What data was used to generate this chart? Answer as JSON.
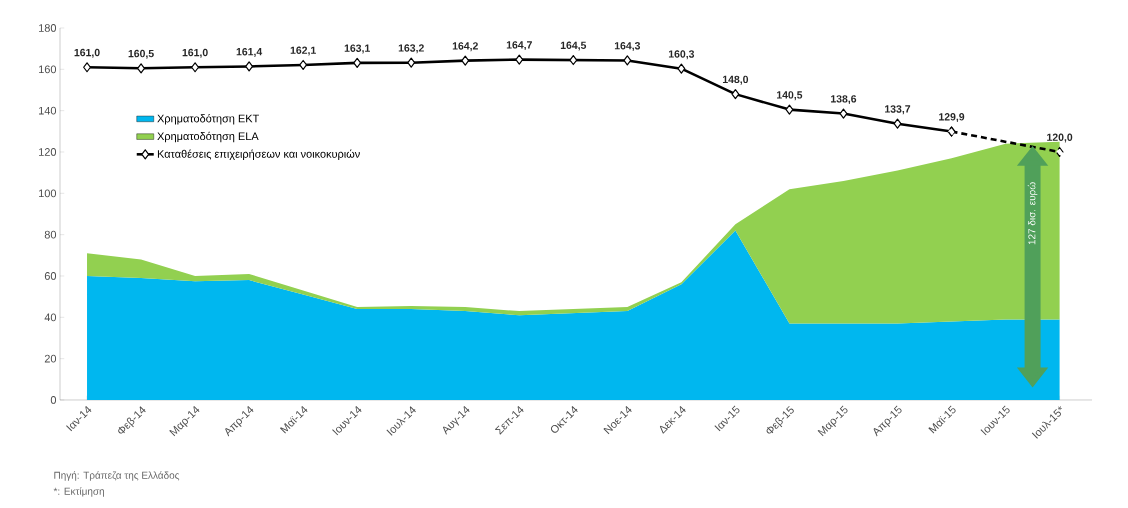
{
  "chart_data": {
    "type": "area",
    "stacked": true,
    "categories": [
      "Ιαν-14",
      "Φεβ-14",
      "Μαρ-14",
      "Απρ-14",
      "Μαϊ-14",
      "Ιουν-14",
      "Ιουλ-14",
      "Αυγ-14",
      "Σεπ-14",
      "Οκτ-14",
      "Νοε-14",
      "Δεκ-14",
      "Ιαν-15",
      "Φεβ-15",
      "Μαρ-15",
      "Απρ-15",
      "Μαϊ-15",
      "Ιουν-15",
      "Ιουλ-15*"
    ],
    "series": [
      {
        "name": "Χρηματοδότηση ΕΚΤ",
        "color": "#00b7ef",
        "values": [
          60,
          59,
          57.5,
          58,
          51,
          44,
          44,
          43,
          41,
          42,
          43,
          56,
          82,
          37,
          37,
          37,
          38,
          39,
          39
        ]
      },
      {
        "name": "Χρηματοδότηση ELA",
        "color": "#92d050",
        "values": [
          11,
          9,
          2.5,
          3,
          2,
          1,
          1.5,
          2,
          2,
          2,
          2,
          1,
          3,
          65,
          69,
          74,
          79,
          85,
          86
        ]
      },
      {
        "name": "Καταθέσεις επιχειρήσεων και νοικοκυριών",
        "type": "line",
        "color": "#000000",
        "marker": "diamond",
        "line_style": "solid",
        "values": [
          161.0,
          160.5,
          161.0,
          161.4,
          162.1,
          163.1,
          163.2,
          164.2,
          164.7,
          164.5,
          164.3,
          160.3,
          148.0,
          140.5,
          138.6,
          133.7,
          129.9,
          null,
          null
        ],
        "value_labels": [
          "161,0",
          "160,5",
          "161,0",
          "161,4",
          "162,1",
          "163,1",
          "163,2",
          "164,2",
          "164,7",
          "164,5",
          "164,3",
          "160,3",
          "148,0",
          "140,5",
          "138,6",
          "133,7",
          "129,9",
          null,
          null
        ]
      },
      {
        "type": "line",
        "color": "#000000",
        "marker": "diamond",
        "line_style": "dashed",
        "values": [
          null,
          null,
          null,
          null,
          null,
          null,
          null,
          null,
          null,
          null,
          null,
          null,
          null,
          null,
          null,
          null,
          129.9,
          null,
          120.0
        ],
        "value_labels": [
          null,
          null,
          null,
          null,
          null,
          null,
          null,
          null,
          null,
          null,
          null,
          null,
          null,
          null,
          null,
          null,
          null,
          null,
          "120,0"
        ]
      }
    ],
    "ylim": [
      0,
      180
    ],
    "yticks": [
      0,
      20,
      40,
      60,
      80,
      100,
      120,
      140,
      160,
      180
    ],
    "grid": false,
    "legend": "top left",
    "annotations": [
      "127 δισ. ευρώ",
      "Πηγή: Τράπεζα της Ελλάδος",
      "*: Εκτίμηση"
    ]
  }
}
